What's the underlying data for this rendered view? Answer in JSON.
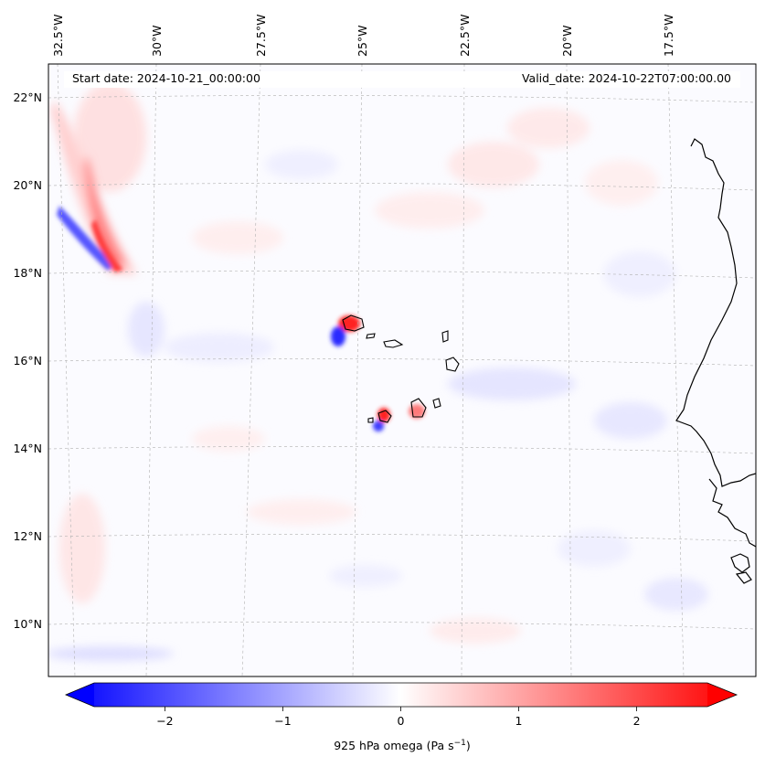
{
  "map": {
    "start_date": "Start date: 2024-10-21_00:00:00",
    "valid_date": "Valid_date: 2024-10-22T07:00:00.00",
    "lon_labels": [
      "32.5°W",
      "30°W",
      "27.5°W",
      "25°W",
      "22.5°W",
      "20°W",
      "17.5°W"
    ],
    "lat_labels": [
      "22°N",
      "20°N",
      "18°N",
      "16°N",
      "14°N",
      "12°N",
      "10°N"
    ],
    "features": [
      "Cape Verde islands",
      "West African coastline"
    ]
  },
  "colorbar": {
    "label_prefix": "925 hPa omega (Pa s",
    "label_exp": "−1",
    "label_suffix": ")",
    "min": -2.6,
    "max": 2.6,
    "ticks": [
      -2,
      -1,
      0,
      1,
      2
    ],
    "tick_labels": [
      "−2",
      "−1",
      "0",
      "1",
      "2"
    ],
    "colormap": "bwr",
    "extend": "both",
    "colors": {
      "negative": "#0000ff",
      "zero": "#ffffff",
      "positive": "#ff0000"
    }
  }
}
